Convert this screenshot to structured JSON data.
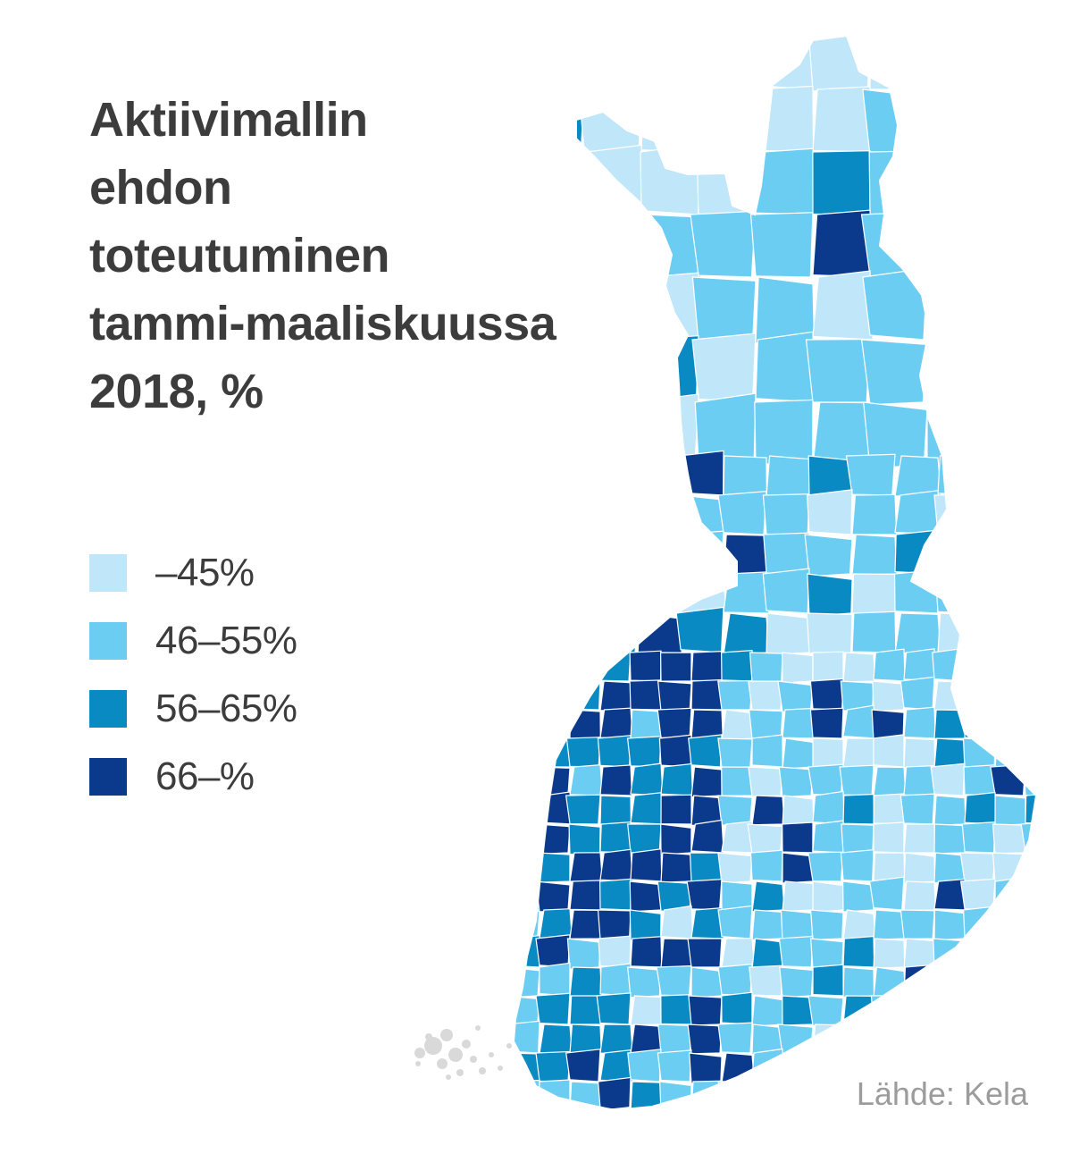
{
  "title": {
    "line1": "Aktiivimallin",
    "line2": "ehdon",
    "line3": "toteutuminen",
    "line4": "tammi-maaliskuussa",
    "line5": "2018, %"
  },
  "legend": [
    {
      "label": "–45%",
      "color": "#bfe6f9"
    },
    {
      "label": "46–55%",
      "color": "#6ccdf2"
    },
    {
      "label": "56–65%",
      "color": "#0a8ac3"
    },
    {
      "label": "66–%",
      "color": "#0b3a8c"
    }
  ],
  "source": "Lähde: Kela",
  "map": {
    "region": "Suomi",
    "outline_color": "#ffffff",
    "aland_color": "#d9d9d9"
  }
}
